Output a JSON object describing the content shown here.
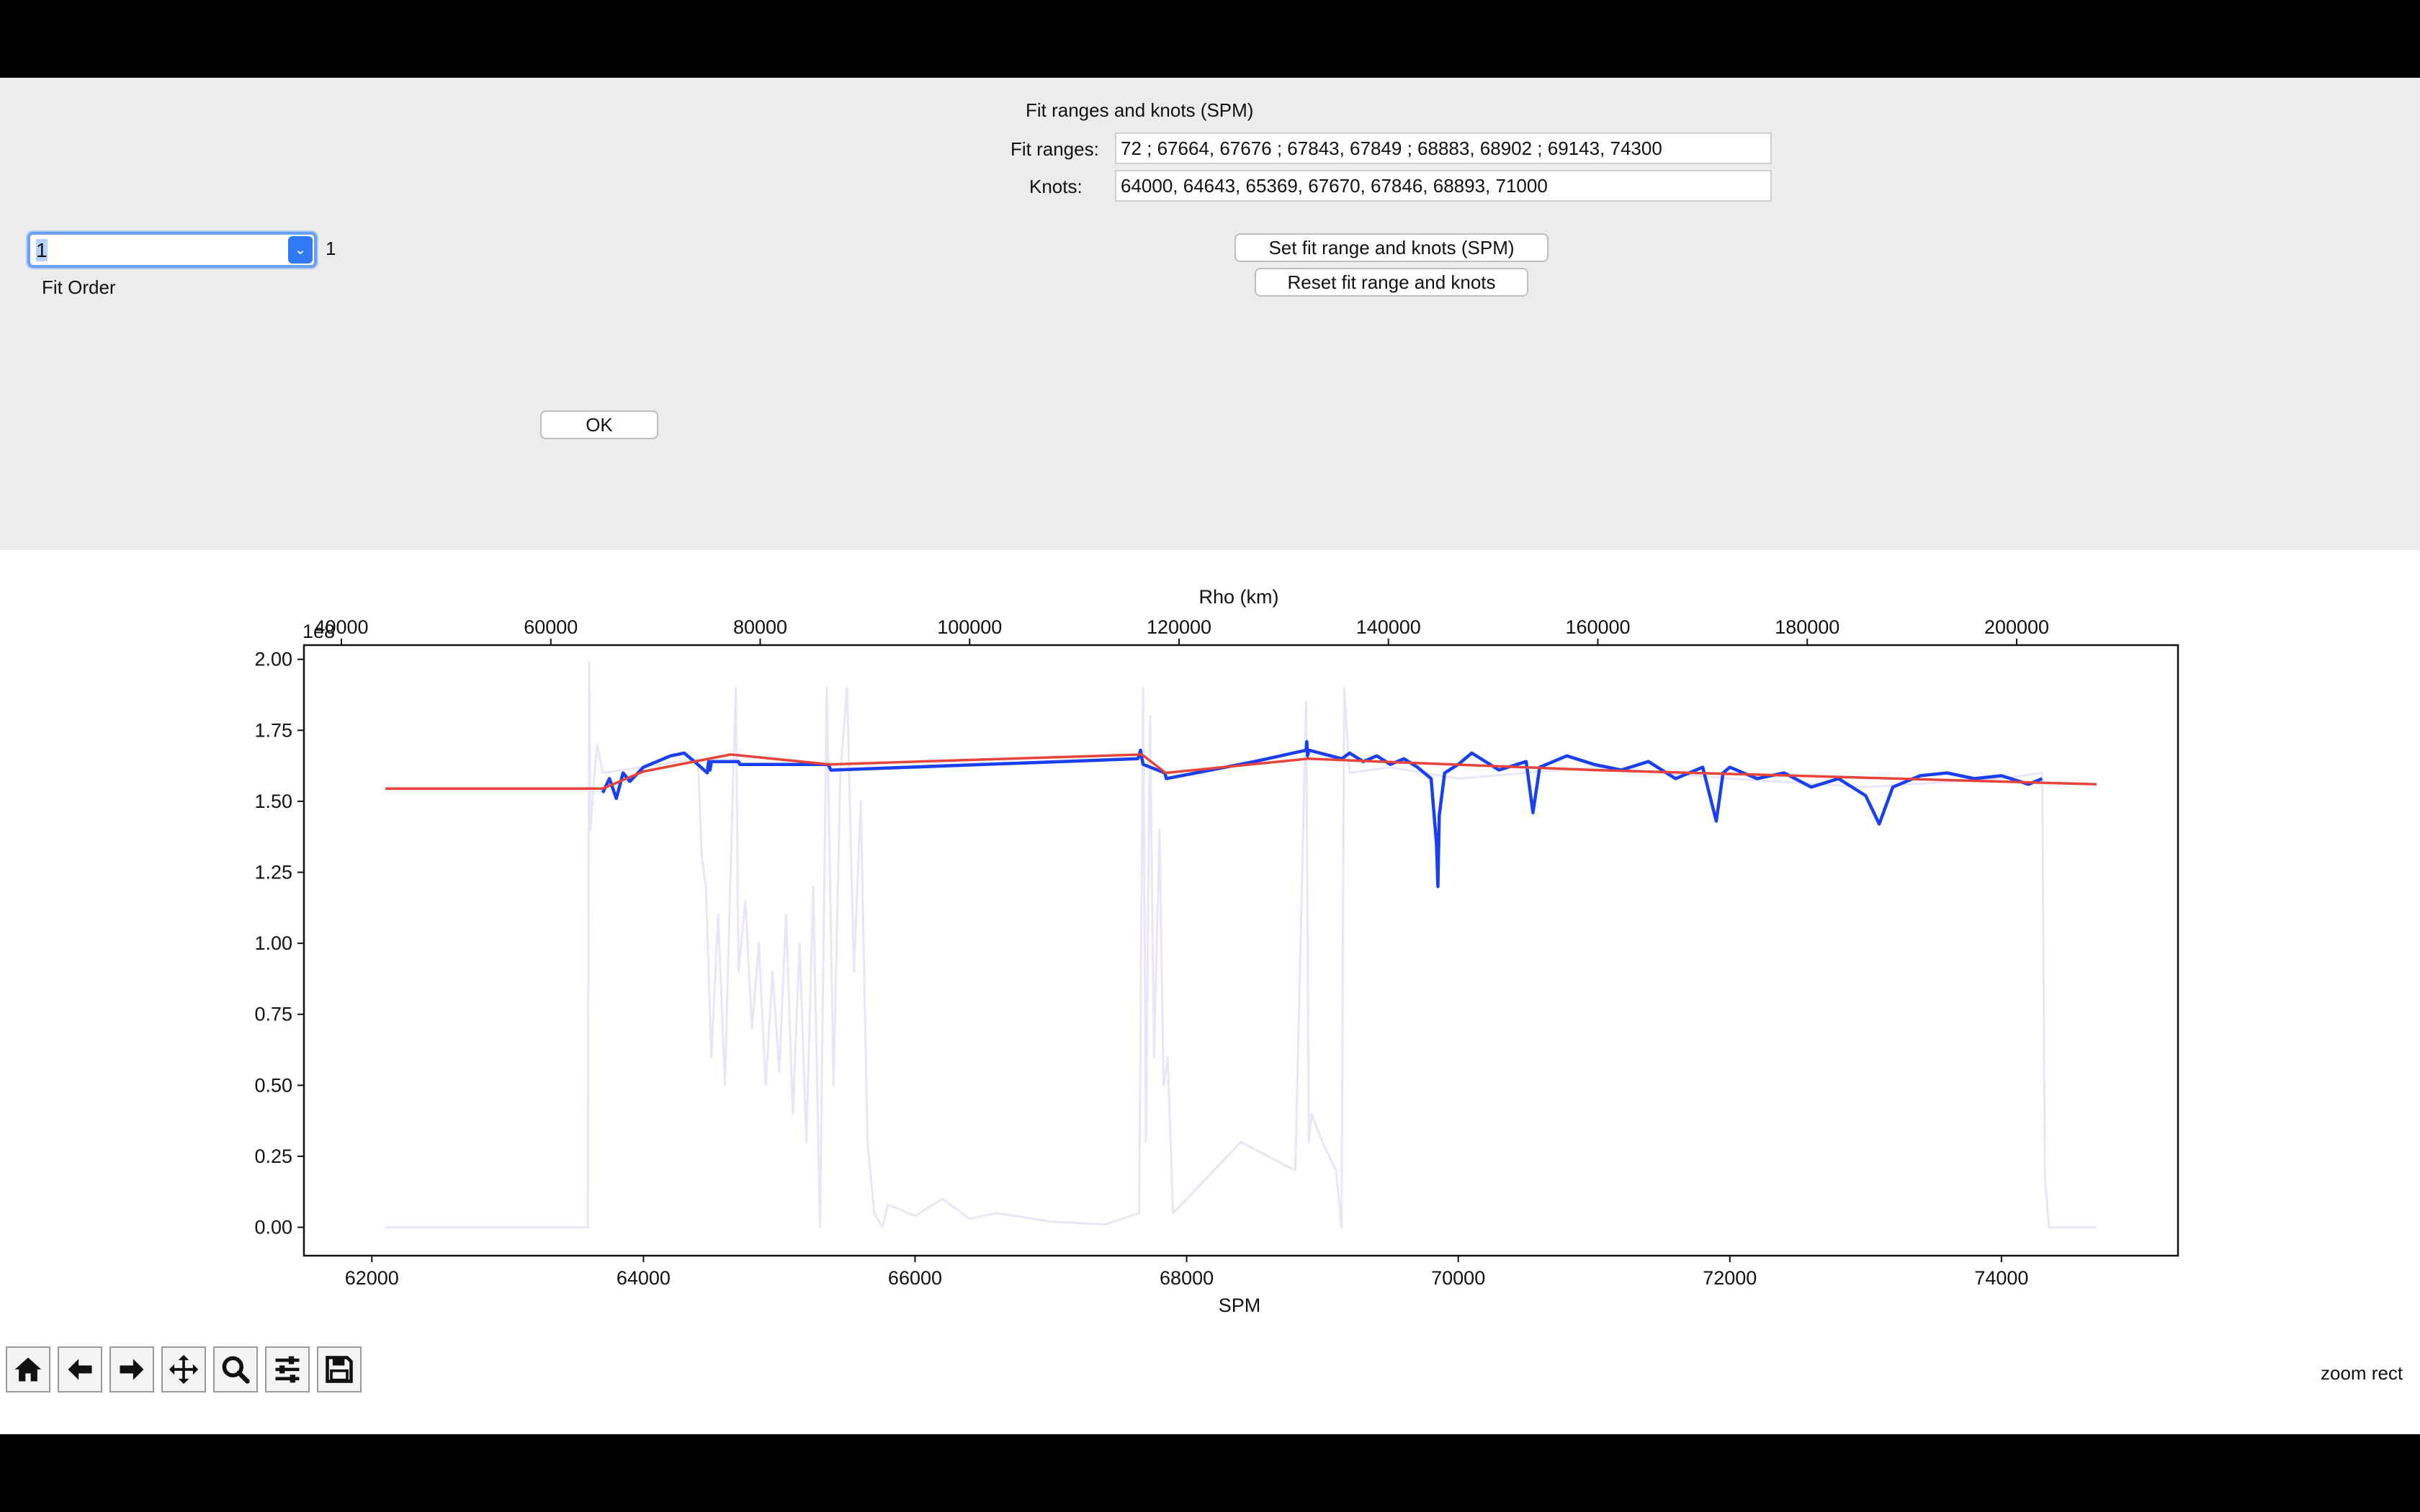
{
  "panel": {
    "fit_title": "Fit ranges and knots (SPM)",
    "fit_ranges_label": "Fit ranges:",
    "fit_ranges_value": "72 ; 67664, 67676 ; 67843, 67849 ; 68883, 68902 ; 69143, 74300",
    "knots_label": "Knots:",
    "knots_value": "64000, 64643, 65369, 67670, 67846, 68893, 71000",
    "set_button": "Set fit range and knots (SPM)",
    "reset_button": "Reset fit range and knots",
    "fit_order_label": "Fit Order",
    "fit_order_value": "1",
    "fit_order_echo": "1",
    "ok_button": "OK"
  },
  "toolbar": {
    "buttons": [
      "home-icon",
      "back-icon",
      "forward-icon",
      "pan-icon",
      "zoom-icon",
      "configure-subplots-icon",
      "save-icon"
    ],
    "status": "zoom rect"
  },
  "chart_data": {
    "type": "line",
    "xlabel": "SPM",
    "top_xlabel": "Rho (km)",
    "y_offset_text": "1e8",
    "xlim": [
      61500,
      75300
    ],
    "ylim": [
      -0.1,
      2.05
    ],
    "x_ticks": [
      "62000",
      "64000",
      "66000",
      "68000",
      "70000",
      "72000",
      "74000"
    ],
    "top_x_ticks": [
      "40000",
      "60000",
      "80000",
      "100000",
      "120000",
      "140000",
      "160000",
      "180000",
      "200000"
    ],
    "y_ticks": [
      "0.00",
      "0.25",
      "0.50",
      "0.75",
      "1.00",
      "1.25",
      "1.50",
      "1.75",
      "2.00"
    ],
    "colors": {
      "raw": "#e6e6f8",
      "data": "#1a3ff0",
      "fit": "#e8433a"
    },
    "series": [
      {
        "key": "raw",
        "x": [
          62100,
          63590,
          63600,
          63610,
          63640,
          63660,
          63700,
          64400,
          64430,
          64460,
          64500,
          64550,
          64600,
          64650,
          64680,
          64700,
          64750,
          64800,
          64850,
          64900,
          64950,
          65000,
          65050,
          65100,
          65150,
          65200,
          65250,
          65300,
          65350,
          65400,
          65450,
          65500,
          65550,
          65600,
          65650,
          65700,
          65760,
          65800,
          66000,
          66200,
          66400,
          66600,
          67000,
          67400,
          67650,
          67680,
          67700,
          67730,
          67760,
          67800,
          67830,
          67860,
          67900,
          68000,
          68200,
          68400,
          68600,
          68800,
          68880,
          68900,
          68920,
          69000,
          69100,
          69140,
          69160,
          69200,
          69500,
          70000,
          71000,
          72000,
          73000,
          74000,
          74300,
          74320,
          74350,
          74400,
          74700
        ],
        "y": [
          0.0,
          0.0,
          1.99,
          1.4,
          1.6,
          1.7,
          1.6,
          1.65,
          1.3,
          1.2,
          0.6,
          1.1,
          0.5,
          1.4,
          1.9,
          0.9,
          1.15,
          0.7,
          1.0,
          0.5,
          0.9,
          0.55,
          1.1,
          0.4,
          1.0,
          0.3,
          1.2,
          0.0,
          1.9,
          0.5,
          1.6,
          1.9,
          0.9,
          1.5,
          0.3,
          0.05,
          0.0,
          0.08,
          0.04,
          0.1,
          0.03,
          0.05,
          0.02,
          0.01,
          0.05,
          1.9,
          0.3,
          1.8,
          0.6,
          1.4,
          0.5,
          0.6,
          0.05,
          0.1,
          0.2,
          0.3,
          0.25,
          0.2,
          1.85,
          0.3,
          0.4,
          0.3,
          0.2,
          0.0,
          1.9,
          1.6,
          1.62,
          1.58,
          1.62,
          1.58,
          1.55,
          1.58,
          1.6,
          0.18,
          0.0,
          0.0,
          0.0
        ]
      },
      {
        "key": "data",
        "x": [
          63700,
          63750,
          63800,
          63850,
          63900,
          64000,
          64100,
          64200,
          64300,
          64400,
          64470,
          64480,
          64490,
          64500,
          64700,
          64710,
          65360,
          65370,
          65380,
          65400,
          67640,
          67650,
          67660,
          67670,
          67680,
          67840,
          67850,
          68500,
          68880,
          68885,
          68890,
          68900,
          69143,
          69200,
          69300,
          69400,
          69500,
          69600,
          69700,
          69800,
          69840,
          69850,
          69860,
          69900,
          70000,
          70100,
          70300,
          70500,
          70550,
          70600,
          70800,
          71000,
          71200,
          71400,
          71600,
          71800,
          71900,
          71950,
          72000,
          72200,
          72400,
          72600,
          72800,
          73000,
          73100,
          73200,
          73400,
          73600,
          73800,
          74000,
          74200,
          74300
        ],
        "y": [
          1.53,
          1.58,
          1.51,
          1.6,
          1.57,
          1.62,
          1.64,
          1.66,
          1.67,
          1.63,
          1.6,
          1.64,
          1.61,
          1.64,
          1.64,
          1.63,
          1.63,
          1.62,
          1.61,
          1.61,
          1.65,
          1.66,
          1.68,
          1.65,
          1.63,
          1.6,
          1.58,
          1.64,
          1.68,
          1.71,
          1.66,
          1.68,
          1.65,
          1.67,
          1.64,
          1.66,
          1.63,
          1.65,
          1.62,
          1.58,
          1.35,
          1.2,
          1.45,
          1.6,
          1.63,
          1.67,
          1.61,
          1.64,
          1.46,
          1.62,
          1.66,
          1.63,
          1.61,
          1.64,
          1.58,
          1.62,
          1.43,
          1.6,
          1.62,
          1.58,
          1.6,
          1.55,
          1.58,
          1.52,
          1.42,
          1.55,
          1.59,
          1.6,
          1.58,
          1.59,
          1.56,
          1.58
        ]
      },
      {
        "key": "fit",
        "x": [
          62100,
          63700,
          64000,
          64643,
          65369,
          67670,
          67846,
          68893,
          71000,
          74700
        ],
        "y": [
          1.545,
          1.545,
          1.605,
          1.665,
          1.63,
          1.665,
          1.6,
          1.65,
          1.61,
          1.56
        ]
      }
    ]
  }
}
